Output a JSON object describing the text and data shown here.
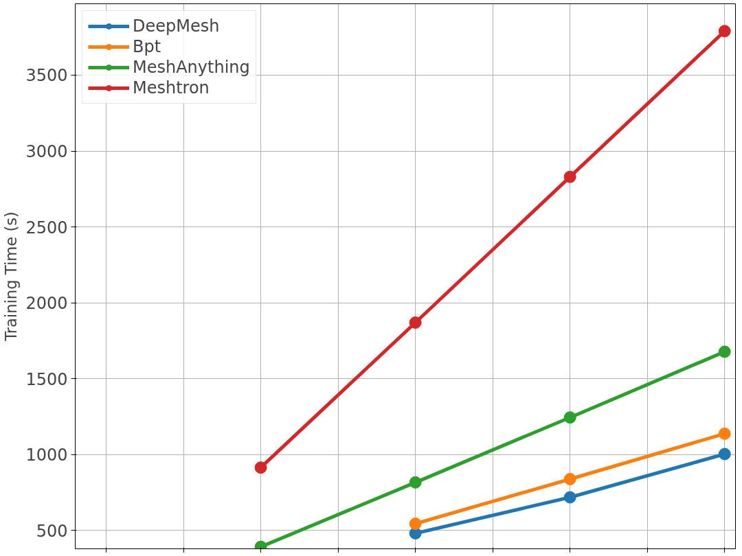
{
  "chart_data": {
    "type": "line",
    "ylabel": "Training Time (s)",
    "categories": [
      null,
      null,
      null,
      null,
      null
    ],
    "series": [
      {
        "name": "DeepMesh",
        "color": "#1f77b4",
        "values": [
          null,
          null,
          482,
          719,
          1004
        ]
      },
      {
        "name": "Bpt",
        "color": "#ff7f0e",
        "values": [
          null,
          null,
          545,
          839,
          1138
        ]
      },
      {
        "name": "MeshAnything",
        "color": "#2ca02c",
        "values": [
          null,
          393,
          817,
          1245,
          1678
        ]
      },
      {
        "name": "Meshtron",
        "color": "#d62728",
        "values": [
          null,
          915,
          1870,
          2830,
          3790
        ]
      }
    ],
    "ylim": [
      380,
      3970
    ],
    "yticks": [
      500,
      1000,
      1500,
      2000,
      2500,
      3000,
      3500
    ],
    "grid": true,
    "legend": "top left",
    "marker": "circle",
    "line_style": "solid",
    "tick_labels": "y"
  }
}
